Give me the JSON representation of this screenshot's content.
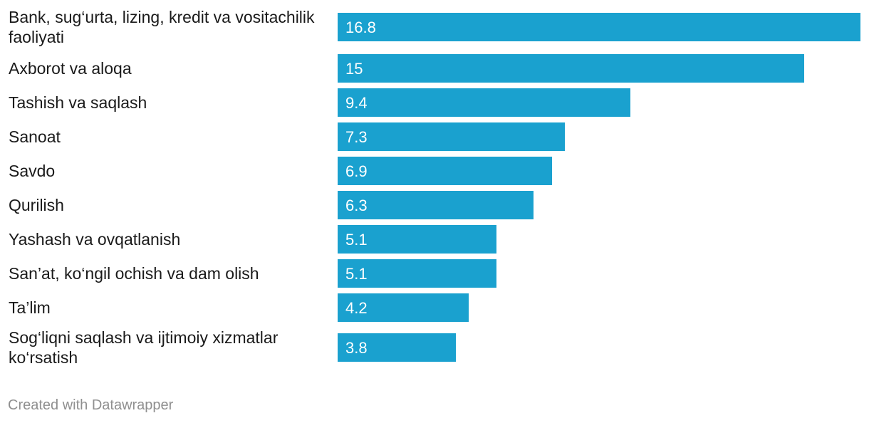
{
  "chart_data": {
    "type": "bar",
    "orientation": "horizontal",
    "categories": [
      [
        "Bank, sug‘urta, lizing, kredit va vositachilik",
        "faoliyati"
      ],
      [
        "Axborot va aloqa"
      ],
      [
        "Tashish va saqlash"
      ],
      [
        "Sanoat"
      ],
      [
        "Savdo"
      ],
      [
        "Qurilish"
      ],
      [
        "Yashash va ovqatlanish"
      ],
      [
        "San’at, ko‘ngil ochish va dam olish"
      ],
      [
        "Ta’lim"
      ],
      [
        "Sog‘liqni saqlash va ijtimoiy xizmatlar",
        "ko‘rsatish"
      ]
    ],
    "values": [
      16.8,
      15,
      9.4,
      7.3,
      6.9,
      6.3,
      5.1,
      5.1,
      4.2,
      3.8
    ],
    "value_labels": [
      "16.8",
      "15",
      "9.4",
      "7.3",
      "6.9",
      "6.3",
      "5.1",
      "5.1",
      "4.2",
      "3.8"
    ],
    "xlim": [
      0,
      16.8
    ],
    "bar_color": "#1aa1cf",
    "grid": false,
    "title": "",
    "xlabel": "",
    "ylabel": ""
  },
  "footer": {
    "credit": "Created with Datawrapper"
  }
}
